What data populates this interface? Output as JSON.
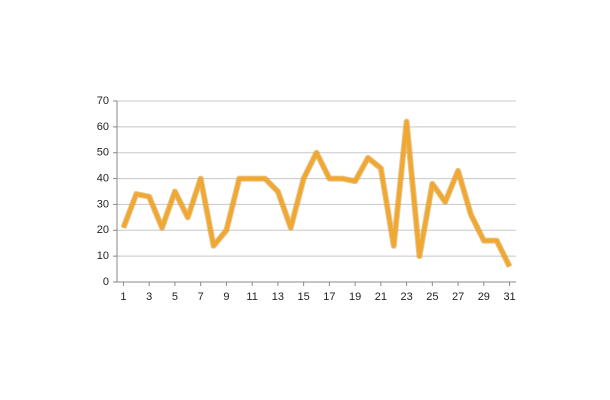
{
  "chart_data": {
    "type": "line",
    "x": [
      1,
      2,
      3,
      4,
      5,
      6,
      7,
      8,
      9,
      10,
      11,
      12,
      13,
      14,
      15,
      16,
      17,
      18,
      19,
      20,
      21,
      22,
      23,
      24,
      25,
      26,
      27,
      28,
      29,
      30,
      31
    ],
    "series": [
      {
        "color": "#f0a830",
        "values": [
          21,
          34,
          33,
          21,
          35,
          25,
          40,
          14,
          20,
          40,
          40,
          40,
          35,
          21,
          40,
          50,
          40,
          40,
          39,
          48,
          44,
          14,
          62,
          10,
          38,
          31,
          43,
          26,
          16,
          16,
          6
        ]
      }
    ],
    "xlim": [
      0.5,
      31.5
    ],
    "xticks": [
      1,
      3,
      5,
      7,
      9,
      11,
      13,
      15,
      17,
      19,
      21,
      23,
      25,
      27,
      29,
      31
    ],
    "ylim": [
      0,
      70
    ],
    "yticks": [
      0,
      10,
      20,
      30,
      40,
      50,
      60,
      70
    ],
    "grid": true
  }
}
